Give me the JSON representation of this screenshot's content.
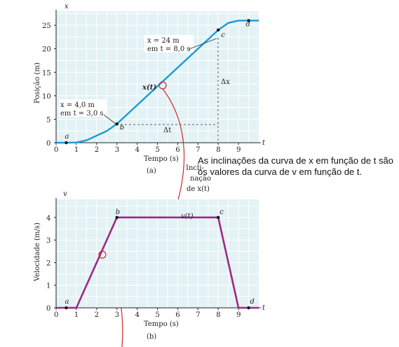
{
  "colors": {
    "x_curve": "#1a9bd3",
    "v_curve": "#9c2a83",
    "plot_bg": "#e3f2f5",
    "arrow": "#d0282a"
  },
  "callout": {
    "text": "As inclinações da curva de x em função de t são os valores da curva de v em função de t."
  },
  "middle_label": {
    "line1": "Incli-",
    "line2": "nação",
    "line3": "de x(t)"
  },
  "chart_data": [
    {
      "type": "line",
      "panel": "(a)",
      "xlabel": "Tempo (s)",
      "ylabel": "Posição (m)",
      "x_axis_symbol": "t",
      "y_axis_symbol": "x",
      "xlim": [
        0,
        10
      ],
      "ylim": [
        0,
        28
      ],
      "xticks": [
        0,
        1,
        2,
        3,
        4,
        5,
        6,
        7,
        8,
        9
      ],
      "yticks": [
        0,
        5,
        10,
        15,
        20,
        25
      ],
      "grid": true,
      "series": [
        {
          "name": "x(t)",
          "x": [
            0,
            0.5,
            1,
            1.5,
            2,
            2.5,
            3,
            4,
            5,
            6,
            7,
            8,
            8.5,
            9,
            9.5,
            10
          ],
          "y": [
            0,
            0,
            0.05,
            0.5,
            1.5,
            2.5,
            4,
            8,
            12,
            16,
            20,
            24,
            25.5,
            26,
            26,
            26
          ]
        }
      ],
      "points": [
        {
          "label": "a",
          "x": 0.5,
          "y": 0
        },
        {
          "label": "b",
          "x": 3,
          "y": 4
        },
        {
          "label": "c",
          "x": 8,
          "y": 24
        },
        {
          "label": "d",
          "x": 9.5,
          "y": 26
        }
      ],
      "annotations": {
        "b_line1": "x = 4,0 m",
        "b_line2": "em t = 3,0 s",
        "c_line1": "x = 24 m",
        "c_line2": "em t = 8,0 s",
        "delta_t": "Δt",
        "delta_x": "Δx",
        "curve_label": "x(t)"
      }
    },
    {
      "type": "line",
      "panel": "(b)",
      "xlabel": "Tempo (s)",
      "ylabel": "Velocidade (m/s)",
      "x_axis_symbol": "t",
      "y_axis_symbol": "v",
      "xlim": [
        0,
        10
      ],
      "ylim": [
        0,
        4.8
      ],
      "xticks": [
        0,
        1,
        2,
        3,
        4,
        5,
        6,
        7,
        8,
        9
      ],
      "yticks": [
        0,
        1,
        2,
        3,
        4
      ],
      "grid": true,
      "series": [
        {
          "name": "v(t)",
          "x": [
            0,
            1,
            3,
            8,
            9,
            10
          ],
          "y": [
            0,
            0,
            4,
            4,
            0,
            0
          ]
        }
      ],
      "points": [
        {
          "label": "a",
          "x": 0.5,
          "y": 0
        },
        {
          "label": "b",
          "x": 3,
          "y": 4
        },
        {
          "label": "c",
          "x": 8,
          "y": 4
        },
        {
          "label": "d",
          "x": 9.5,
          "y": 0
        }
      ],
      "annotations": {
        "curve_label": "v(t)"
      }
    }
  ]
}
